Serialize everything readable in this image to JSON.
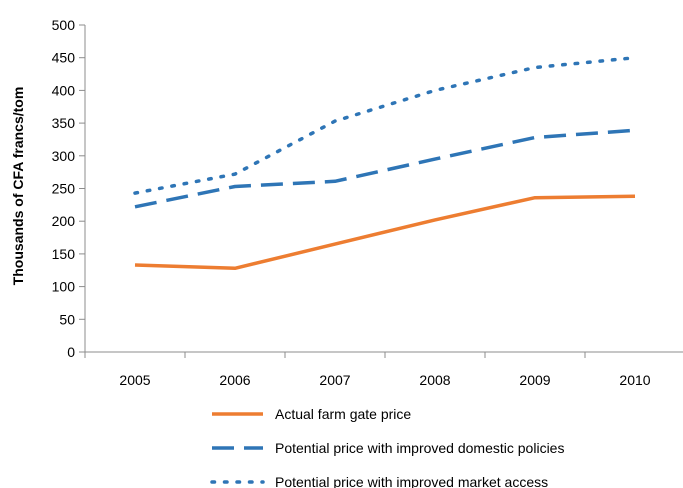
{
  "chart_data": {
    "type": "line",
    "title": "",
    "xlabel": "",
    "ylabel": "Thousands  of CFA francs/tom",
    "categories": [
      "2005",
      "2006",
      "2007",
      "2008",
      "2009",
      "2010"
    ],
    "yticks": [
      "0",
      "50",
      "100",
      "150",
      "200",
      "250",
      "300",
      "350",
      "400",
      "450",
      "500"
    ],
    "ylim": [
      0,
      500
    ],
    "grid": false,
    "legend_position": "bottom",
    "series": [
      {
        "name": "Actual farm gate price",
        "values": [
          133,
          128,
          165,
          202,
          236,
          238
        ],
        "color": "#ED7D31",
        "style": "solid"
      },
      {
        "name": "Potential price with improved domestic policies",
        "values": [
          222,
          253,
          261,
          295,
          328,
          339
        ],
        "color": "#2E75B6",
        "style": "dashed"
      },
      {
        "name": "Potential price with improved market access",
        "values": [
          243,
          272,
          353,
          400,
          435,
          450
        ],
        "color": "#2E75B6",
        "style": "dotted"
      }
    ]
  }
}
